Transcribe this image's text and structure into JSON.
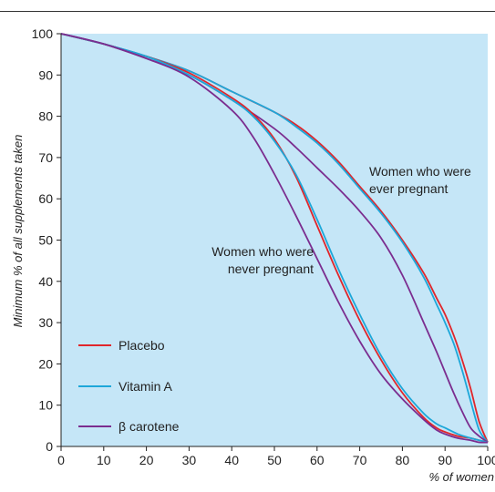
{
  "chart_data": {
    "type": "line",
    "xlabel": "% of women",
    "ylabel": "Minimum % of all supplements taken",
    "xlim": [
      0,
      100
    ],
    "ylim": [
      0,
      100
    ],
    "xticks": [
      "0",
      "10",
      "20",
      "30",
      "40",
      "50",
      "60",
      "70",
      "80",
      "90",
      "100"
    ],
    "yticks": [
      "0",
      "10",
      "20",
      "30",
      "40",
      "50",
      "60",
      "70",
      "80",
      "90",
      "100"
    ],
    "grid": false,
    "background": "#c5e6f7",
    "legend": {
      "placement": "bottom-left",
      "entries": [
        {
          "name": "Placebo",
          "color": "#e0262b"
        },
        {
          "name": "Vitamin A",
          "color": "#1da7d9"
        },
        {
          "name": "β carotene",
          "color": "#7b2d8f"
        }
      ]
    },
    "annotations": [
      {
        "text": [
          "Women who were",
          "ever pregnant"
        ]
      },
      {
        "text": [
          "Women who were",
          "never pregnant"
        ]
      }
    ],
    "series": [
      {
        "name": "Placebo",
        "group": "ever pregnant",
        "color": "#e0262b",
        "x": [
          0,
          10,
          20,
          30,
          40,
          50,
          55,
          60,
          65,
          70,
          75,
          80,
          85,
          88,
          90,
          92,
          94,
          96,
          98,
          100
        ],
        "y": [
          100,
          97.5,
          94.5,
          91,
          86,
          81,
          78,
          74,
          69,
          63,
          57,
          50,
          42,
          36,
          32,
          27,
          21,
          14,
          6,
          1
        ]
      },
      {
        "name": "Vitamin A",
        "group": "ever pregnant",
        "color": "#1da7d9",
        "x": [
          0,
          10,
          20,
          30,
          40,
          50,
          55,
          60,
          65,
          70,
          75,
          80,
          85,
          88,
          90,
          92,
          94,
          96,
          98,
          100
        ],
        "y": [
          100,
          97.5,
          94.5,
          91,
          86,
          81,
          77.5,
          73.5,
          68.5,
          62.5,
          56.5,
          49.5,
          41,
          34.5,
          30,
          25,
          18.5,
          11,
          4,
          1
        ]
      },
      {
        "name": "β carotene",
        "group": "ever pregnant",
        "color": "#7b2d8f",
        "x": [
          0,
          10,
          20,
          30,
          40,
          50,
          55,
          60,
          65,
          70,
          75,
          80,
          85,
          88,
          90,
          92,
          94,
          96,
          98,
          100
        ],
        "y": [
          100,
          97.5,
          94,
          90,
          84,
          77,
          72.5,
          67.5,
          62.5,
          57,
          50.5,
          41.5,
          30,
          23,
          18,
          13,
          8.5,
          4.5,
          2.5,
          1
        ]
      },
      {
        "name": "Placebo",
        "group": "never pregnant",
        "color": "#e0262b",
        "x": [
          0,
          10,
          20,
          30,
          40,
          45,
          50,
          55,
          60,
          65,
          70,
          75,
          80,
          85,
          88,
          90,
          93,
          96,
          98,
          100
        ],
        "y": [
          100,
          97.5,
          94.5,
          90.5,
          84.5,
          80.5,
          74.5,
          65.5,
          53.5,
          41.5,
          30.5,
          21,
          13,
          7,
          4.5,
          3.5,
          2.5,
          2,
          1.5,
          1
        ]
      },
      {
        "name": "Vitamin A",
        "group": "never pregnant",
        "color": "#1da7d9",
        "x": [
          0,
          10,
          20,
          30,
          40,
          45,
          50,
          55,
          60,
          65,
          70,
          75,
          80,
          85,
          88,
          90,
          93,
          96,
          98,
          100
        ],
        "y": [
          100,
          97.5,
          94.5,
          90,
          84,
          80,
          74,
          66,
          55,
          43,
          32,
          22,
          14,
          8,
          5.5,
          4.5,
          3,
          2,
          1.5,
          1
        ]
      },
      {
        "name": "β carotene",
        "group": "never pregnant",
        "color": "#7b2d8f",
        "x": [
          0,
          10,
          20,
          30,
          40,
          45,
          50,
          55,
          60,
          65,
          70,
          75,
          80,
          85,
          88,
          90,
          93,
          96,
          98,
          100
        ],
        "y": [
          100,
          97.5,
          94,
          89.5,
          81.5,
          75,
          66,
          56,
          45.5,
          35,
          25.5,
          17.5,
          11.5,
          6.5,
          4,
          3,
          2,
          1.5,
          1,
          1
        ]
      }
    ]
  }
}
